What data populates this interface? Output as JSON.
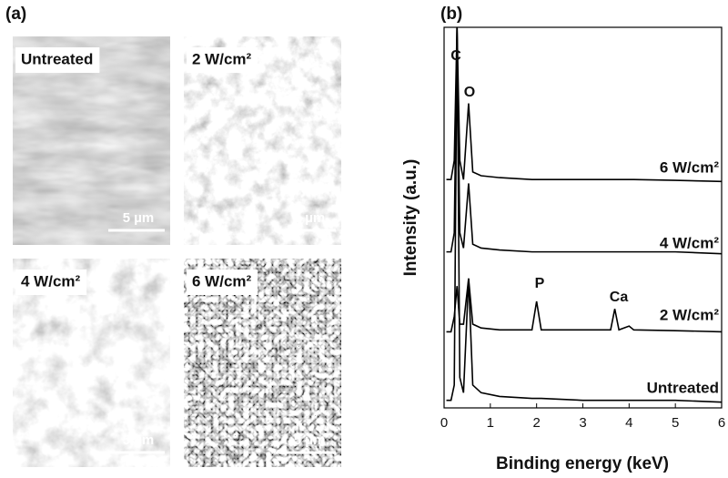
{
  "panel_a": {
    "label": "(a)",
    "images": [
      {
        "label": "Untreated",
        "scale_bar": "5 µm"
      },
      {
        "label": "2 W/cm²",
        "scale_bar": "5 µm"
      },
      {
        "label": "4 W/cm²",
        "scale_bar": "5 µm"
      },
      {
        "label": "6 W/cm²",
        "scale_bar": "5 µm"
      }
    ]
  },
  "chart_data": {
    "type": "line",
    "label": "(b)",
    "x_label": "Binding energy (keV)",
    "y_label": "Intensity (a.u.)",
    "xlim": [
      0,
      6
    ],
    "xticks": [
      0,
      1,
      2,
      3,
      4,
      5,
      6
    ],
    "ylim": [
      0,
      100
    ],
    "x": [
      0.05,
      0.15,
      0.22,
      0.28,
      0.34,
      0.42,
      0.53,
      0.62,
      0.8,
      1.2,
      1.9,
      2.0,
      2.1,
      3.0,
      3.6,
      3.69,
      3.78,
      4.0,
      4.1,
      5,
      6
    ],
    "series": [
      {
        "name": "6 W/cm²",
        "color": "#000000",
        "values": [
          60,
          60,
          65,
          100,
          65,
          60,
          80,
          62,
          61,
          60.5,
          60,
          60,
          60,
          60,
          60,
          60,
          60,
          60,
          60,
          59.8,
          59.5
        ]
      },
      {
        "name": "4 W/cm²",
        "color": "#000000",
        "values": [
          41,
          41,
          46,
          100,
          46,
          42,
          59,
          43,
          42,
          41.5,
          41,
          41,
          41,
          41,
          41,
          41,
          41,
          41,
          41,
          41,
          40.5
        ]
      },
      {
        "name": "2 W/cm²",
        "color": "#000000",
        "values": [
          20,
          20,
          24,
          32,
          22,
          22,
          34,
          22,
          21,
          20.5,
          20.5,
          28,
          20.5,
          20.5,
          20.5,
          26,
          20.5,
          21.5,
          20.5,
          20.3,
          20
        ]
      },
      {
        "name": "Untreated",
        "color": "#000000",
        "values": [
          2,
          2,
          6,
          100,
          8,
          4,
          34,
          6,
          4,
          3,
          2.5,
          2.5,
          2.5,
          2,
          2,
          2,
          2,
          2,
          2,
          2,
          1.5
        ]
      }
    ],
    "annotations": [
      "C",
      "O",
      "P",
      "Ca"
    ]
  }
}
